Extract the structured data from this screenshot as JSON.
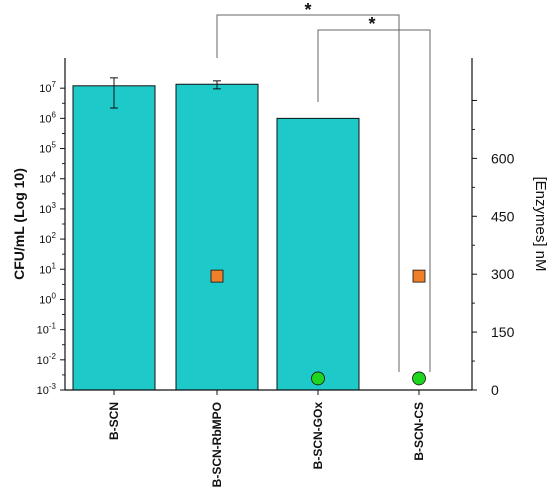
{
  "chart_data": {
    "type": "bar",
    "categories": [
      "B-SCN",
      "B-SCN-RbMPO",
      "B-SCN-GOx",
      "B-SCN-CS"
    ],
    "left_axis": {
      "label": "CFU/mL (Log 10)",
      "scale": "log",
      "ylim": [
        0.001,
        100000000
      ],
      "ticks": [
        {
          "value": 0.001,
          "base": "10",
          "exp": "-3"
        },
        {
          "value": 0.01,
          "base": "10",
          "exp": "-2"
        },
        {
          "value": 0.1,
          "base": "10",
          "exp": "-1"
        },
        {
          "value": 1,
          "base": "10",
          "exp": "0"
        },
        {
          "value": 10,
          "base": "10",
          "exp": "1"
        },
        {
          "value": 100,
          "base": "10",
          "exp": "2"
        },
        {
          "value": 1000,
          "base": "10",
          "exp": "3"
        },
        {
          "value": 10000,
          "base": "10",
          "exp": "4"
        },
        {
          "value": 100000,
          "base": "10",
          "exp": "5"
        },
        {
          "value": 1000000,
          "base": "10",
          "exp": "6"
        },
        {
          "value": 10000000,
          "base": "10",
          "exp": "7"
        }
      ]
    },
    "right_axis": {
      "label": "[Enzymes] nM",
      "ylim": [
        0,
        860
      ],
      "ticks": [
        0,
        150,
        300,
        450,
        600,
        750
      ],
      "tick_labels": [
        "0",
        "150",
        "300",
        "450",
        "600",
        ""
      ]
    },
    "bars": {
      "name": "CFU/mL",
      "color": "#1ec9c9",
      "values": [
        12000000,
        13500000,
        1000000,
        null
      ],
      "error_low": [
        2200000,
        9500000,
        null,
        null
      ],
      "error_high": [
        22000000,
        17500000,
        null,
        null
      ]
    },
    "enzyme_series": [
      {
        "marker": "square",
        "color": "#f07f2a",
        "points": [
          {
            "category": "B-SCN-RbMPO",
            "value": 295
          },
          {
            "category": "B-SCN-CS",
            "value": 295
          }
        ]
      },
      {
        "marker": "circle",
        "color": "#1fd61f",
        "points": [
          {
            "category": "B-SCN-GOx",
            "value": 30
          },
          {
            "category": "B-SCN-CS",
            "value": 30
          }
        ]
      }
    ],
    "annotations": [
      {
        "from": "B-SCN-RbMPO",
        "to": "B-SCN-CS",
        "label": "*"
      },
      {
        "from": "B-SCN-GOx",
        "to": "B-SCN-CS",
        "label": "*"
      }
    ],
    "grid": false,
    "legend": "none"
  }
}
